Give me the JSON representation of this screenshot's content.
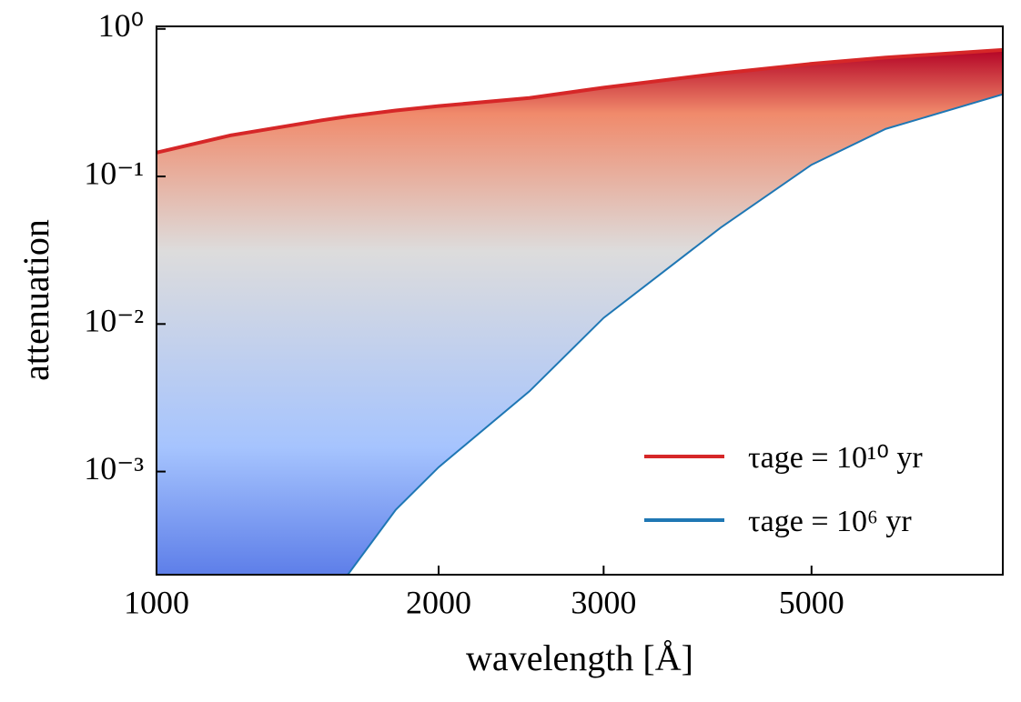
{
  "chart_data": {
    "type": "line",
    "x_label": "wavelength [Å]",
    "y_label": "attenuation",
    "x": [
      1000,
      1200,
      1500,
      1600,
      1800,
      2000,
      2500,
      3000,
      4000,
      5000,
      6000,
      8000
    ],
    "series": [
      {
        "name": "τage = 10¹⁰ yr",
        "color": "#d62728",
        "values": [
          0.145,
          0.19,
          0.24,
          0.255,
          0.28,
          0.3,
          0.34,
          0.4,
          0.5,
          0.58,
          0.64,
          0.72
        ]
      },
      {
        "name": "τage = 10⁶ yr",
        "color": "#1f77b4",
        "values": [
          null,
          null,
          null,
          0.0002,
          0.00055,
          0.00107,
          0.0035,
          0.011,
          0.045,
          0.12,
          0.21,
          0.36
        ]
      }
    ],
    "xlim": [
      1000,
      8000
    ],
    "ylim": [
      0.0002,
      1.04
    ],
    "xticks": [
      1000,
      2000,
      3000,
      5000
    ],
    "yticks": [
      {
        "value": 1,
        "label": "10⁰"
      },
      {
        "value": 0.1,
        "label": "10⁻¹"
      },
      {
        "value": 0.01,
        "label": "10⁻²"
      },
      {
        "value": 0.001,
        "label": "10⁻³"
      }
    ],
    "log_x": true,
    "log_y": true,
    "legend": "lower right"
  }
}
